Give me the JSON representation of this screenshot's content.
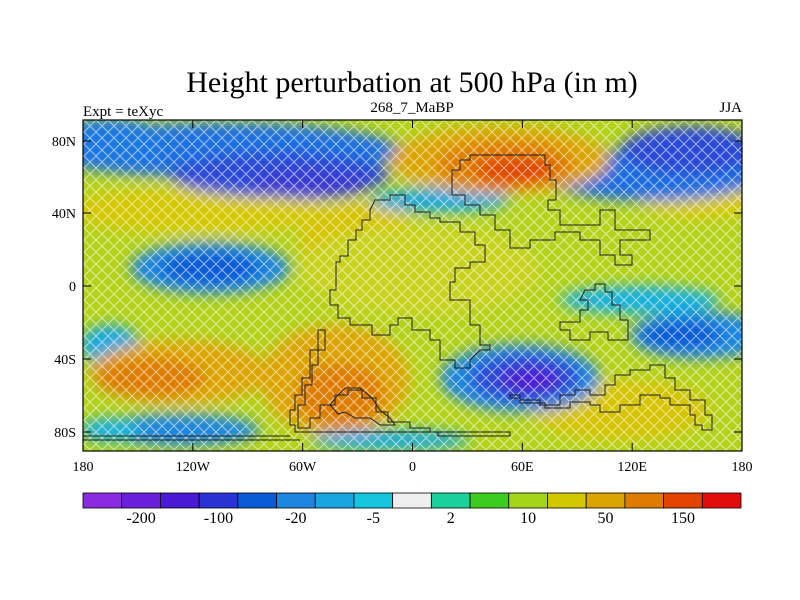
{
  "title": "Height perturbation at 500 hPa (in m)",
  "left_label": "Expt = teXyc",
  "center_label": "268_7_MaBP",
  "right_label": "JJA",
  "lat_ticks": [
    "80N",
    "40N",
    "0",
    "40S",
    "80S"
  ],
  "lon_ticks": [
    "180",
    "120W",
    "60W",
    "0",
    "60E",
    "120E",
    "180"
  ],
  "colorbar": {
    "colors": [
      "#8a2be2",
      "#6a1fdc",
      "#4b1ad6",
      "#2a34d4",
      "#0b5ad6",
      "#1c86e0",
      "#19a5e0",
      "#16c4dd",
      "#efefef",
      "#1ad09c",
      "#3ccc20",
      "#a6d418",
      "#d2c800",
      "#dca400",
      "#de7c00",
      "#e24400",
      "#e20c0c"
    ],
    "labels": [
      "-200",
      "-100",
      "-20",
      "-5",
      "2",
      "10",
      "50",
      "150"
    ]
  }
}
